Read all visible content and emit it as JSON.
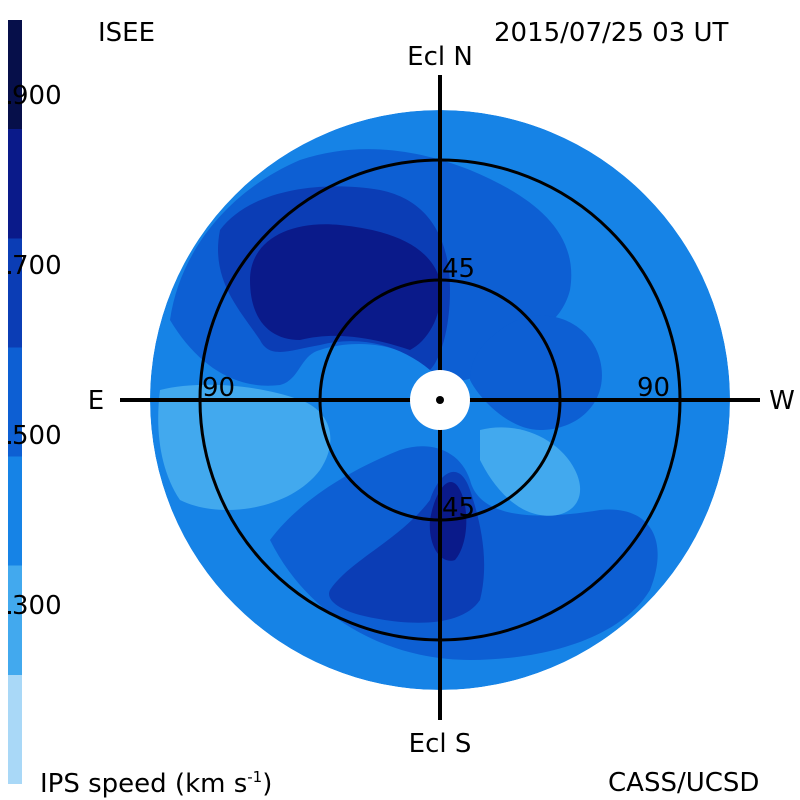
{
  "header": {
    "observatory": "ISEE",
    "datetime": "2015/07/25 03 UT",
    "credit": "CASS/UCSD"
  },
  "colorbar": {
    "label_main": "IPS speed (km s",
    "label_exp": "-1",
    "label_close": ")",
    "ticks": [
      "900",
      "700",
      "500",
      "300"
    ],
    "colors": [
      "#a9d8f7",
      "#42a9ee",
      "#1683e6",
      "#0d5fd3",
      "#0b3db5",
      "#0a1a8a",
      "#060f4a"
    ]
  },
  "map": {
    "directions": {
      "north": "Ecl N",
      "south": "Ecl S",
      "east": "E",
      "west": "W"
    },
    "ring_labels": {
      "inner_top": "45",
      "inner_bottom": "45",
      "outer_left": "90",
      "outer_right": "90"
    },
    "colors": {
      "background": "#1683e6",
      "mid": "#0d5fd3",
      "dark": "#0b3db5",
      "darkest": "#0a1a8a",
      "light": "#42a9ee"
    }
  }
}
